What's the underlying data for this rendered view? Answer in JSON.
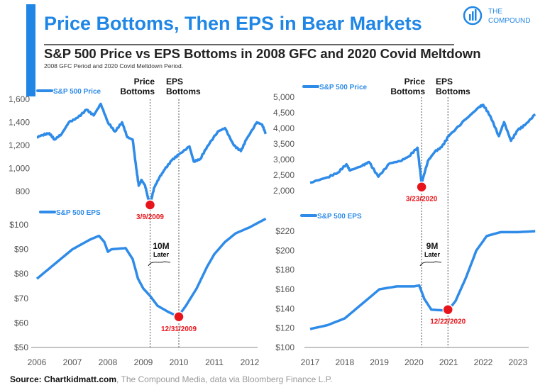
{
  "header": {
    "title": "Price Bottoms, Then EPS in Bear Markets",
    "subtitle": "S&P 500 Price vs EPS Bottoms in 2008 GFC and 2020 Covid Meltdown",
    "note": "2008 GFC Period and 2020 Covid Meltdown Period.",
    "logo_line1": "THE",
    "logo_line2": "COMPOUND"
  },
  "colors": {
    "line": "#2e8be8",
    "marker": "#e8141b",
    "title": "#1f86e6"
  },
  "annotations": {
    "price_bottoms_1": "Price",
    "price_bottoms_2": "Bottoms",
    "eps_bottoms_1": "EPS",
    "eps_bottoms_2": "Bottoms",
    "left_lag_1": "10M",
    "left_lag_2": "Later",
    "right_lag_1": "9M",
    "right_lag_2": "Later"
  },
  "source": {
    "bold": "Source: Chartkidmatt.com",
    "rest": ", The Compound Media, data via Bloomberg Finance L.P."
  },
  "chart_data": [
    {
      "type": "line",
      "panel": "left",
      "legend": "S&P 500 Price",
      "yticks": [
        "1,600",
        "1,400",
        "1,200",
        "1,000",
        "800"
      ],
      "ytick_values": [
        1600,
        1400,
        1200,
        1000,
        800
      ],
      "ylim": [
        650,
        1600
      ],
      "points": [
        [
          2006,
          1270
        ],
        [
          2006.15,
          1290
        ],
        [
          2006.35,
          1305
        ],
        [
          2006.5,
          1250
        ],
        [
          2006.7,
          1300
        ],
        [
          2006.9,
          1400
        ],
        [
          2007.15,
          1440
        ],
        [
          2007.4,
          1510
        ],
        [
          2007.6,
          1460
        ],
        [
          2007.8,
          1560
        ],
        [
          2008.0,
          1400
        ],
        [
          2008.2,
          1320
        ],
        [
          2008.4,
          1400
        ],
        [
          2008.55,
          1270
        ],
        [
          2008.7,
          1250
        ],
        [
          2008.8,
          1000
        ],
        [
          2008.87,
          850
        ],
        [
          2008.95,
          900
        ],
        [
          2009.05,
          850
        ],
        [
          2009.12,
          760
        ],
        [
          2009.19,
          680
        ],
        [
          2009.3,
          830
        ],
        [
          2009.45,
          920
        ],
        [
          2009.6,
          990
        ],
        [
          2009.8,
          1070
        ],
        [
          2010.0,
          1120
        ],
        [
          2010.3,
          1190
        ],
        [
          2010.42,
          1060
        ],
        [
          2010.6,
          1080
        ],
        [
          2010.8,
          1190
        ],
        [
          2011.1,
          1320
        ],
        [
          2011.3,
          1350
        ],
        [
          2011.55,
          1200
        ],
        [
          2011.75,
          1150
        ],
        [
          2011.9,
          1250
        ],
        [
          2012.2,
          1400
        ],
        [
          2012.35,
          1380
        ],
        [
          2012.45,
          1300
        ]
      ],
      "marker": {
        "x": 2009.19,
        "y": 683,
        "label": "3/9/2009"
      }
    },
    {
      "type": "line",
      "panel": "left",
      "legend": "S&P 500 EPS",
      "yticks": [
        "$100",
        "$90",
        "$80",
        "$70",
        "$60",
        "$50"
      ],
      "ytick_values": [
        100,
        90,
        80,
        70,
        60,
        50
      ],
      "ylim": [
        50,
        100
      ],
      "xticks": [
        "2006",
        "2007",
        "2008",
        "2009",
        "2010",
        "2011",
        "2012"
      ],
      "xtick_values": [
        2006,
        2007,
        2008,
        2009,
        2010,
        2011,
        2012
      ],
      "points": [
        [
          2006,
          78
        ],
        [
          2006.5,
          84
        ],
        [
          2007.0,
          90
        ],
        [
          2007.5,
          94
        ],
        [
          2007.75,
          95.5
        ],
        [
          2007.9,
          93
        ],
        [
          2008.0,
          89
        ],
        [
          2008.1,
          90
        ],
        [
          2008.5,
          90.5
        ],
        [
          2008.7,
          86
        ],
        [
          2008.85,
          78
        ],
        [
          2009.0,
          74
        ],
        [
          2009.19,
          71
        ],
        [
          2009.4,
          67
        ],
        [
          2009.7,
          64.5
        ],
        [
          2009.85,
          63.5
        ],
        [
          2010.0,
          63
        ],
        [
          2010.2,
          67
        ],
        [
          2010.5,
          74
        ],
        [
          2010.8,
          83
        ],
        [
          2011.0,
          88
        ],
        [
          2011.3,
          93
        ],
        [
          2011.6,
          96.5
        ],
        [
          2012.0,
          99
        ],
        [
          2012.45,
          102.5
        ]
      ],
      "marker": {
        "x": 2010.0,
        "y": 62.5,
        "label": "12/31/2009"
      }
    },
    {
      "type": "line",
      "panel": "right",
      "legend": "S&P 500 Price",
      "yticks": [
        "5,000",
        "4,500",
        "4,000",
        "3,500",
        "3,000",
        "2,500",
        "2,000"
      ],
      "ytick_values": [
        5000,
        4500,
        4000,
        3500,
        3000,
        2500,
        2000
      ],
      "ylim": [
        2000,
        5000
      ],
      "points": [
        [
          2017,
          2260
        ],
        [
          2017.5,
          2430
        ],
        [
          2017.8,
          2580
        ],
        [
          2018.05,
          2850
        ],
        [
          2018.15,
          2650
        ],
        [
          2018.5,
          2800
        ],
        [
          2018.7,
          2920
        ],
        [
          2018.97,
          2450
        ],
        [
          2019.3,
          2880
        ],
        [
          2019.6,
          2950
        ],
        [
          2019.85,
          3100
        ],
        [
          2020.1,
          3380
        ],
        [
          2020.22,
          2240
        ],
        [
          2020.4,
          2950
        ],
        [
          2020.6,
          3250
        ],
        [
          2020.8,
          3400
        ],
        [
          2021.0,
          3750
        ],
        [
          2021.5,
          4300
        ],
        [
          2021.9,
          4700
        ],
        [
          2022.0,
          4750
        ],
        [
          2022.2,
          4400
        ],
        [
          2022.45,
          3750
        ],
        [
          2022.6,
          4200
        ],
        [
          2022.8,
          3600
        ],
        [
          2023.0,
          3950
        ],
        [
          2023.2,
          4100
        ],
        [
          2023.5,
          4450
        ]
      ],
      "marker": {
        "x": 2020.22,
        "y": 2120,
        "label": "3/23/2020"
      }
    },
    {
      "type": "line",
      "panel": "right",
      "legend": "S&P 500 EPS",
      "yticks": [
        "$220",
        "$200",
        "$180",
        "$160",
        "$140",
        "$120",
        "$100"
      ],
      "ytick_values": [
        220,
        200,
        180,
        160,
        140,
        120,
        100
      ],
      "ylim": [
        100,
        220
      ],
      "xticks": [
        "2017",
        "2018",
        "2019",
        "2020",
        "2021",
        "2022",
        "2023"
      ],
      "xtick_values": [
        2017,
        2018,
        2019,
        2020,
        2021,
        2022,
        2023
      ],
      "points": [
        [
          2017,
          119
        ],
        [
          2017.5,
          123
        ],
        [
          2018.0,
          130
        ],
        [
          2018.5,
          145
        ],
        [
          2019.0,
          160
        ],
        [
          2019.5,
          163
        ],
        [
          2020.0,
          163
        ],
        [
          2020.15,
          164
        ],
        [
          2020.3,
          150
        ],
        [
          2020.5,
          139
        ],
        [
          2020.98,
          138
        ],
        [
          2021.2,
          148
        ],
        [
          2021.5,
          172
        ],
        [
          2021.8,
          200
        ],
        [
          2022.1,
          215
        ],
        [
          2022.5,
          219
        ],
        [
          2023.0,
          219
        ],
        [
          2023.5,
          220
        ]
      ],
      "marker": {
        "x": 2020.98,
        "y": 139,
        "label": "12/22/2020"
      }
    }
  ]
}
